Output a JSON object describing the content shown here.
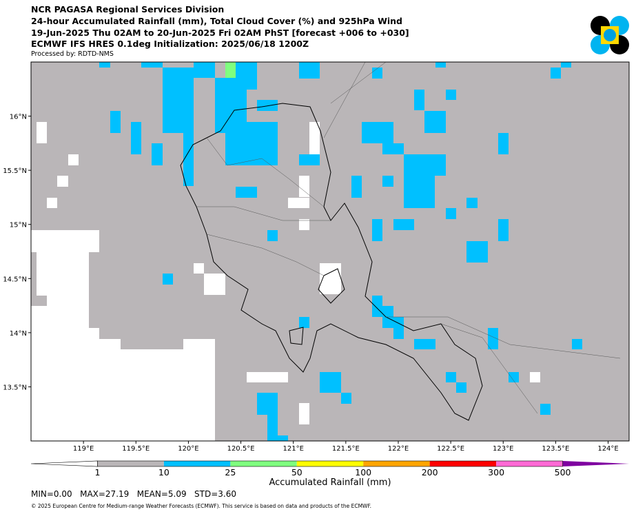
{
  "header": {
    "line1": "NCR PAGASA Regional Services Division",
    "line2": "24-hour Accumulated Rainfall (mm), Total Cloud Cover (%) and 925hPa Wind",
    "line3": "19-Jun-2025 Thu 02AM to 20-Jun-2025 Fri 02AM PhST [forecast +006 to +030]",
    "line4": "ECMWF IFS HRES 0.1deg Initialization: 2025/06/18 1200Z",
    "processed_by": "Processed by: RDTD-NMS"
  },
  "map": {
    "lonlim": [
      118.5,
      124.2
    ],
    "latlim": [
      13.0,
      16.5
    ],
    "lon_ticks": [
      {
        "value": 119,
        "label": "119°E"
      },
      {
        "value": 119.5,
        "label": "119.5°E"
      },
      {
        "value": 120,
        "label": "120°E"
      },
      {
        "value": 120.5,
        "label": "120.5°E"
      },
      {
        "value": 121,
        "label": "121°E"
      },
      {
        "value": 121.5,
        "label": "121.5°E"
      },
      {
        "value": 122,
        "label": "122°E"
      },
      {
        "value": 122.5,
        "label": "122.5°E"
      },
      {
        "value": 123,
        "label": "123°E"
      },
      {
        "value": 123.5,
        "label": "123.5°E"
      },
      {
        "value": 124,
        "label": "124°E"
      }
    ],
    "lat_ticks": [
      {
        "value": 16,
        "label": "16°N"
      },
      {
        "value": 15.5,
        "label": "15.5°N"
      },
      {
        "value": 15,
        "label": "15°N"
      },
      {
        "value": 14.5,
        "label": "14.5°N"
      },
      {
        "value": 14,
        "label": "14°N"
      },
      {
        "value": 13.5,
        "label": "13.5°N"
      }
    ]
  },
  "colorbar": {
    "levels": [
      1,
      10,
      25,
      50,
      100,
      200,
      300,
      500
    ],
    "colors": [
      "#bab6b8",
      "#00c0ff",
      "#7fff7f",
      "#ffff00",
      "#ffa500",
      "#ff0000",
      "#ff6ad5",
      "#7f00a0"
    ],
    "label": "Accumulated Rainfall (mm)"
  },
  "stats": "MIN=0.00   MAX=27.19   MEAN=5.09   STD=3.60",
  "copyright": "© 2025 European Centre for Medium-range Weather Forecasts (ECMWF). This service is based on data and products of the ECMWF."
}
